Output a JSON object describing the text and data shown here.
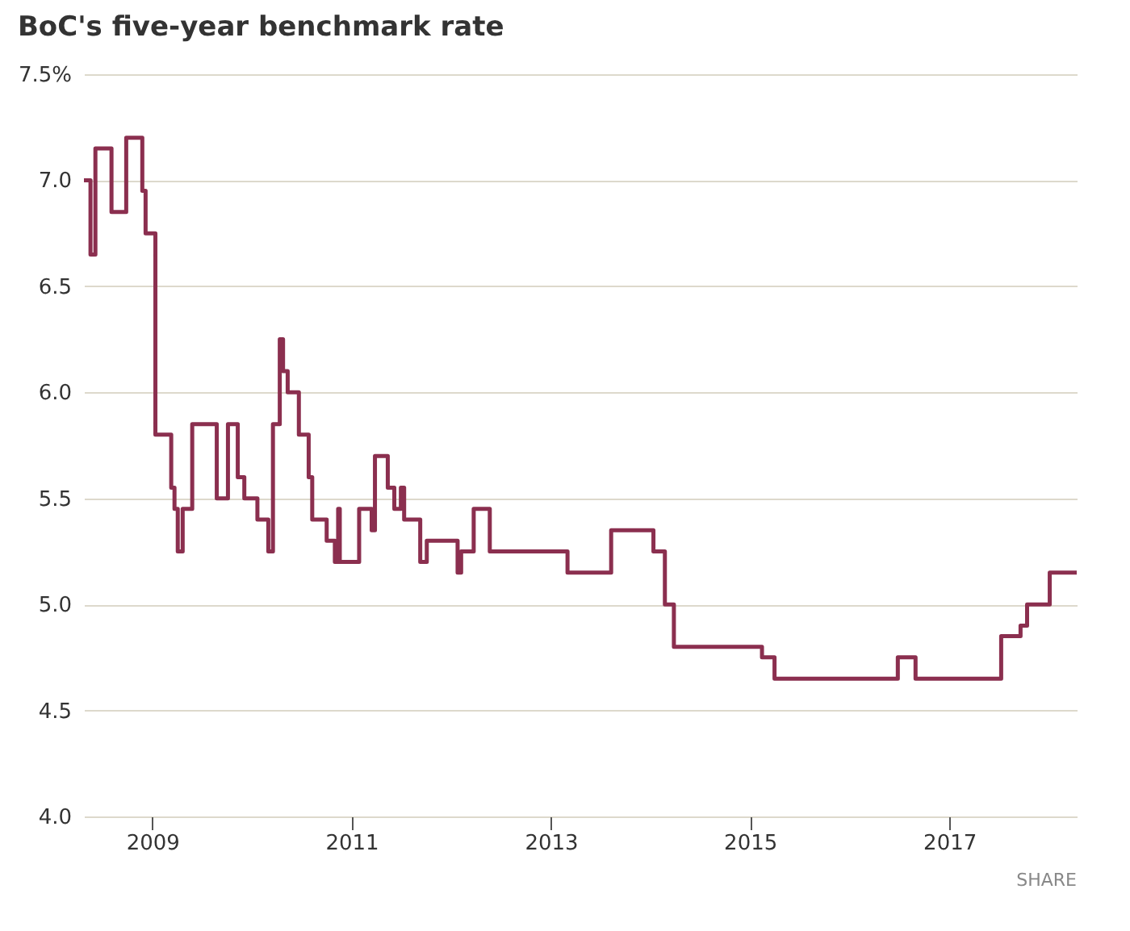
{
  "chart_data": {
    "type": "step",
    "title": "BoC's five-year benchmark rate",
    "x": [
      "2008-04-25",
      "2008-05-19",
      "2008-06-06",
      "2008-08-04",
      "2008-09-27",
      "2008-11-25",
      "2008-12-07",
      "2009-01-12",
      "2009-03-11",
      "2009-03-23",
      "2009-04-04",
      "2009-04-22",
      "2009-05-27",
      "2009-06-14",
      "2009-08-25",
      "2009-10-05",
      "2009-11-10",
      "2009-12-04",
      "2010-01-21",
      "2010-03-02",
      "2010-03-19",
      "2010-04-13",
      "2010-04-25",
      "2010-05-12",
      "2010-06-22",
      "2010-07-28",
      "2010-08-10",
      "2010-10-02",
      "2010-11-01",
      "2010-11-13",
      "2010-11-19",
      "2011-01-29",
      "2011-03-16",
      "2011-03-28",
      "2011-05-14",
      "2011-06-07",
      "2011-07-01",
      "2011-07-13",
      "2011-09-10",
      "2011-10-04",
      "2012-01-25",
      "2012-02-07",
      "2012-03-24",
      "2012-05-22",
      "2013-03-03",
      "2013-08-10",
      "2014-01-12",
      "2014-02-23",
      "2014-03-28",
      "2015-02-14",
      "2015-04-01",
      "2016-06-26",
      "2016-08-30",
      "2017-07-10",
      "2017-09-19",
      "2017-10-13",
      "2018-01-04",
      "2018-04-13"
    ],
    "series": [
      {
        "color": "#8b2f4f",
        "values": [
          7.0,
          6.65,
          7.15,
          6.85,
          7.2,
          6.95,
          6.75,
          5.8,
          5.55,
          5.45,
          5.25,
          5.45,
          5.85,
          5.85,
          5.5,
          5.85,
          5.6,
          5.5,
          5.4,
          5.25,
          5.85,
          6.25,
          6.1,
          6.0,
          5.8,
          5.6,
          5.4,
          5.3,
          5.2,
          5.45,
          5.2,
          5.45,
          5.35,
          5.7,
          5.55,
          5.45,
          5.55,
          5.4,
          5.2,
          5.3,
          5.15,
          5.25,
          5.45,
          5.25,
          5.15,
          5.35,
          5.25,
          5.0,
          4.8,
          4.75,
          4.65,
          4.75,
          4.65,
          4.85,
          4.9,
          5.0,
          5.15,
          5.15
        ]
      }
    ],
    "xlim": [
      "2008-04-25",
      "2018-04-13"
    ],
    "xticks": [
      "2009",
      "2011",
      "2013",
      "2015",
      "2017"
    ],
    "ylim": [
      4.0,
      7.5
    ],
    "yticks": [
      {
        "value": 4.0,
        "label": "4.0"
      },
      {
        "value": 4.5,
        "label": "4.5"
      },
      {
        "value": 5.0,
        "label": "5.0"
      },
      {
        "value": 5.5,
        "label": "5.5"
      },
      {
        "value": 6.0,
        "label": "6.0"
      },
      {
        "value": 6.5,
        "label": "6.5"
      },
      {
        "value": 7.0,
        "label": "7.0"
      },
      {
        "value": 7.5,
        "label": "7.5%"
      }
    ],
    "grid": "y",
    "marker": "none",
    "line_style": "solid",
    "annotations": [
      "SHARE"
    ]
  }
}
